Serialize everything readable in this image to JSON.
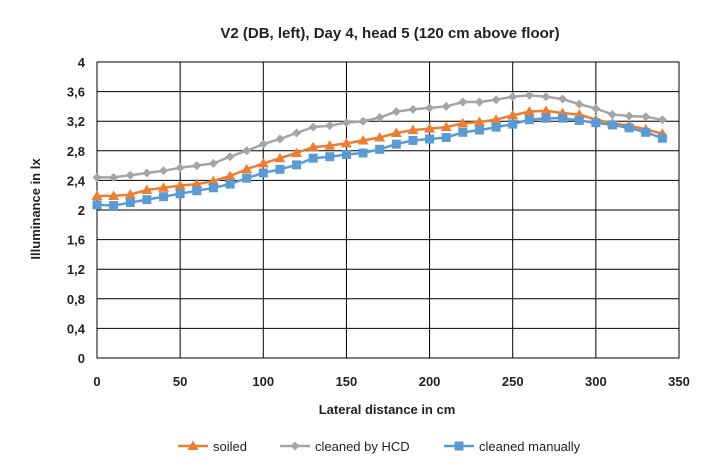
{
  "chart_data": {
    "type": "line",
    "title": "V2 (DB, left), Day 4, head 5 (120 cm above floor)",
    "xlabel": "Lateral distance in cm",
    "ylabel": "Illuminance in lx",
    "xlim": [
      0,
      350
    ],
    "ylim": [
      0,
      4
    ],
    "x_ticks": [
      0,
      50,
      100,
      150,
      200,
      250,
      300,
      350
    ],
    "y_ticks": [
      0,
      0.4,
      0.8,
      1.2,
      1.6,
      2,
      2.4,
      2.8,
      3.2,
      3.6,
      4
    ],
    "x_tick_labels": [
      "0",
      "50",
      "100",
      "150",
      "200",
      "250",
      "300",
      "350"
    ],
    "y_tick_labels": [
      "0",
      "0,4",
      "0,8",
      "1,2",
      "1,6",
      "2",
      "2,4",
      "2,8",
      "3,2",
      "3,6",
      "4"
    ],
    "grid": true,
    "legend_position": "bottom",
    "x": [
      0,
      10,
      20,
      30,
      40,
      50,
      60,
      70,
      80,
      90,
      100,
      110,
      120,
      130,
      140,
      150,
      160,
      170,
      180,
      190,
      200,
      210,
      220,
      230,
      240,
      250,
      260,
      270,
      280,
      290,
      300,
      310,
      320,
      330,
      340
    ],
    "series": [
      {
        "name": "soiled",
        "color": "#ED7D31",
        "marker": "triangle",
        "values": [
          2.19,
          2.19,
          2.21,
          2.27,
          2.3,
          2.33,
          2.35,
          2.39,
          2.46,
          2.55,
          2.63,
          2.7,
          2.77,
          2.85,
          2.87,
          2.9,
          2.94,
          2.98,
          3.04,
          3.08,
          3.1,
          3.12,
          3.17,
          3.19,
          3.22,
          3.28,
          3.33,
          3.34,
          3.31,
          3.29,
          3.22,
          3.17,
          3.14,
          3.09,
          3.03
        ]
      },
      {
        "name": "cleaned by HCD",
        "color": "#A5A5A5",
        "marker": "diamond",
        "values": [
          2.44,
          2.44,
          2.47,
          2.5,
          2.53,
          2.57,
          2.6,
          2.63,
          2.72,
          2.8,
          2.89,
          2.96,
          3.04,
          3.12,
          3.14,
          3.18,
          3.2,
          3.25,
          3.33,
          3.36,
          3.38,
          3.4,
          3.46,
          3.46,
          3.49,
          3.53,
          3.55,
          3.53,
          3.5,
          3.43,
          3.37,
          3.29,
          3.27,
          3.26,
          3.22
        ]
      },
      {
        "name": "cleaned manually",
        "color": "#5B9BD5",
        "marker": "square",
        "values": [
          2.07,
          2.06,
          2.1,
          2.14,
          2.18,
          2.22,
          2.26,
          2.3,
          2.35,
          2.43,
          2.5,
          2.55,
          2.61,
          2.7,
          2.72,
          2.75,
          2.77,
          2.82,
          2.89,
          2.94,
          2.96,
          2.98,
          3.05,
          3.08,
          3.12,
          3.16,
          3.22,
          3.24,
          3.24,
          3.21,
          3.18,
          3.15,
          3.11,
          3.05,
          2.97
        ]
      }
    ]
  }
}
